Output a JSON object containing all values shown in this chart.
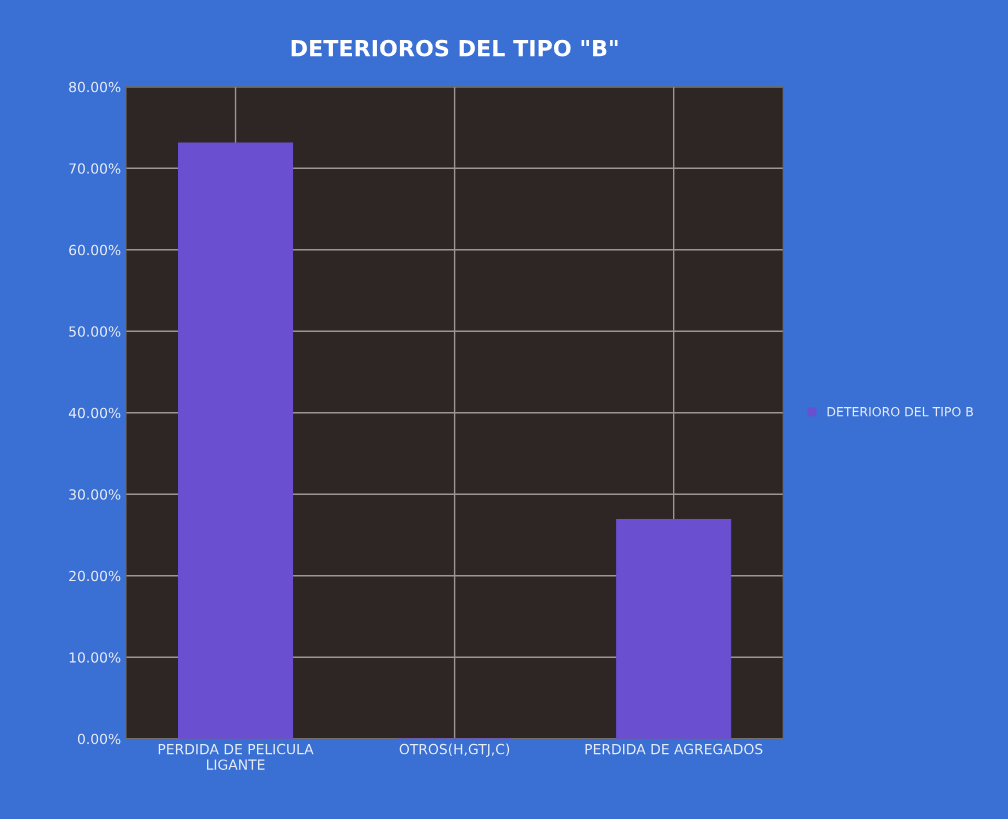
{
  "chart_data": {
    "type": "bar",
    "title": "DETERIOROS DEL TIPO \"B\"",
    "categories": [
      "PERDIDA DE PELICULA\nLIGANTE",
      "OTROS(H,GTJ,C)",
      "PERDIDA DE AGREGADOS"
    ],
    "series": [
      {
        "name": "DETERIORO DEL TIPO B",
        "color": "#6a4fd0",
        "values": [
          73.1,
          0,
          26.9
        ]
      }
    ],
    "ylim": [
      0,
      80
    ],
    "yticks": [
      {
        "value": 0,
        "label": "0.00%"
      },
      {
        "value": 10,
        "label": "10.00%"
      },
      {
        "value": 20,
        "label": "20.00%"
      },
      {
        "value": 30,
        "label": "30.00%"
      },
      {
        "value": 40,
        "label": "40.00%"
      },
      {
        "value": 50,
        "label": "50.00%"
      },
      {
        "value": 60,
        "label": "60.00%"
      },
      {
        "value": 70,
        "label": "70.00%"
      },
      {
        "value": 80,
        "label": "80.00%"
      }
    ],
    "grid": true,
    "legend": "right"
  }
}
